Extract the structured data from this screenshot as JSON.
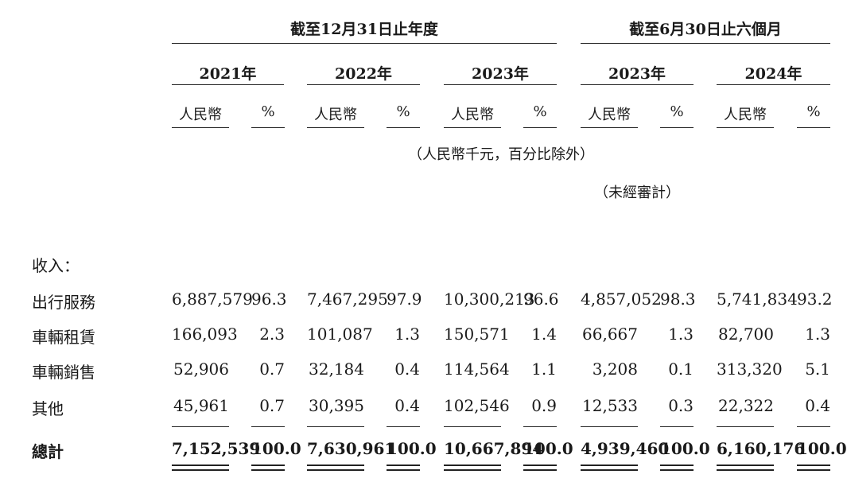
{
  "header": {
    "group1": "截至12月31日止年度",
    "group2": "截至6月30日止六個月",
    "years": [
      "2021年",
      "2022年",
      "2023年",
      "2023年",
      "2024年"
    ],
    "unit_rmb": "人民幣",
    "unit_pct": "%",
    "note": "（人民幣千元，百分比除外）",
    "unaudited": "（未經審計）"
  },
  "section_label": "收入：",
  "rows": [
    {
      "label": "出行服務",
      "values": [
        "6,887,579",
        "96.3",
        "7,467,295",
        "97.9",
        "10,300,213",
        "96.6",
        "4,857,052",
        "98.3",
        "5,741,834",
        "93.2"
      ]
    },
    {
      "label": "車輛租賃",
      "values": [
        "166,093",
        "2.3",
        "101,087",
        "1.3",
        "150,571",
        "1.4",
        "66,667",
        "1.3",
        "82,700",
        "1.3"
      ]
    },
    {
      "label": "車輛銷售",
      "values": [
        "52,906",
        "0.7",
        "32,184",
        "0.4",
        "114,564",
        "1.1",
        "3,208",
        "0.1",
        "313,320",
        "5.1"
      ]
    },
    {
      "label": "其他",
      "values": [
        "45,961",
        "0.7",
        "30,395",
        "0.4",
        "102,546",
        "0.9",
        "12,533",
        "0.3",
        "22,322",
        "0.4"
      ]
    }
  ],
  "total": {
    "label": "總計",
    "values": [
      "7,152,539",
      "100.0",
      "7,630,961",
      "100.0",
      "10,667,894",
      "100.0",
      "4,939,460",
      "100.0",
      "6,160,176",
      "100.0"
    ]
  }
}
